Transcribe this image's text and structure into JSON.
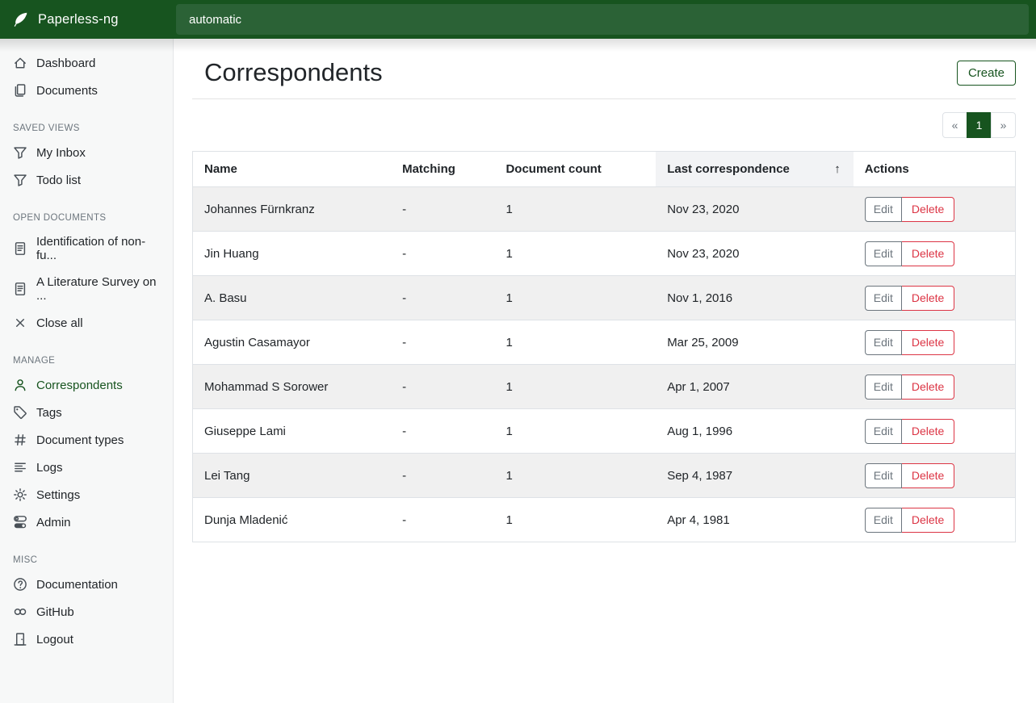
{
  "app": {
    "brand": "Paperless-ng",
    "search_value": "automatic"
  },
  "sidebar": {
    "sections": [
      {
        "title": "",
        "items": [
          {
            "label": "Dashboard",
            "icon": "house"
          },
          {
            "label": "Documents",
            "icon": "files"
          }
        ]
      },
      {
        "title": "SAVED VIEWS",
        "items": [
          {
            "label": "My Inbox",
            "icon": "funnel"
          },
          {
            "label": "Todo list",
            "icon": "funnel"
          }
        ]
      },
      {
        "title": "OPEN DOCUMENTS",
        "items": [
          {
            "label": "Identification of non-fu...",
            "icon": "file-text"
          },
          {
            "label": "A Literature Survey on ...",
            "icon": "file-text"
          },
          {
            "label": "Close all",
            "icon": "x"
          }
        ]
      },
      {
        "title": "MANAGE",
        "items": [
          {
            "label": "Correspondents",
            "icon": "person",
            "active": true
          },
          {
            "label": "Tags",
            "icon": "tag"
          },
          {
            "label": "Document types",
            "icon": "hash"
          },
          {
            "label": "Logs",
            "icon": "text-left"
          },
          {
            "label": "Settings",
            "icon": "gear"
          },
          {
            "label": "Admin",
            "icon": "toggles"
          }
        ]
      },
      {
        "title": "MISC",
        "items": [
          {
            "label": "Documentation",
            "icon": "question-circle"
          },
          {
            "label": "GitHub",
            "icon": "link"
          },
          {
            "label": "Logout",
            "icon": "door"
          }
        ]
      }
    ]
  },
  "page": {
    "title": "Correspondents",
    "create_label": "Create"
  },
  "pagination": {
    "prev": "«",
    "current": "1",
    "next": "»"
  },
  "table": {
    "headers": {
      "name": "Name",
      "matching": "Matching",
      "count": "Document count",
      "last": "Last correspondence",
      "actions": "Actions",
      "sort_icon": "↑",
      "sorted_column": "Last correspondence",
      "sort_direction": "ascending"
    },
    "actions": {
      "edit": "Edit",
      "delete": "Delete"
    },
    "rows": [
      {
        "name": "Johannes Fürnkranz",
        "matching": "-",
        "count": "1",
        "last": "Nov 23, 2020"
      },
      {
        "name": "Jin Huang",
        "matching": "-",
        "count": "1",
        "last": "Nov 23, 2020"
      },
      {
        "name": "A. Basu",
        "matching": "-",
        "count": "1",
        "last": "Nov 1, 2016"
      },
      {
        "name": "Agustin Casamayor",
        "matching": "-",
        "count": "1",
        "last": "Mar 25, 2009"
      },
      {
        "name": "Mohammad S Sorower",
        "matching": "-",
        "count": "1",
        "last": "Apr 1, 2007"
      },
      {
        "name": "Giuseppe Lami",
        "matching": "-",
        "count": "1",
        "last": "Aug 1, 1996"
      },
      {
        "name": "Lei Tang",
        "matching": "-",
        "count": "1",
        "last": "Sep 4, 1987"
      },
      {
        "name": "Dunja Mladenić",
        "matching": "-",
        "count": "1",
        "last": "Apr 4, 1981"
      }
    ]
  },
  "colors": {
    "brand_green": "#17541f",
    "search_field_green": "#2b6236",
    "danger_red": "#dc3545",
    "secondary_gray": "#6c757d",
    "stripe_gray": "#f0f0f0"
  }
}
